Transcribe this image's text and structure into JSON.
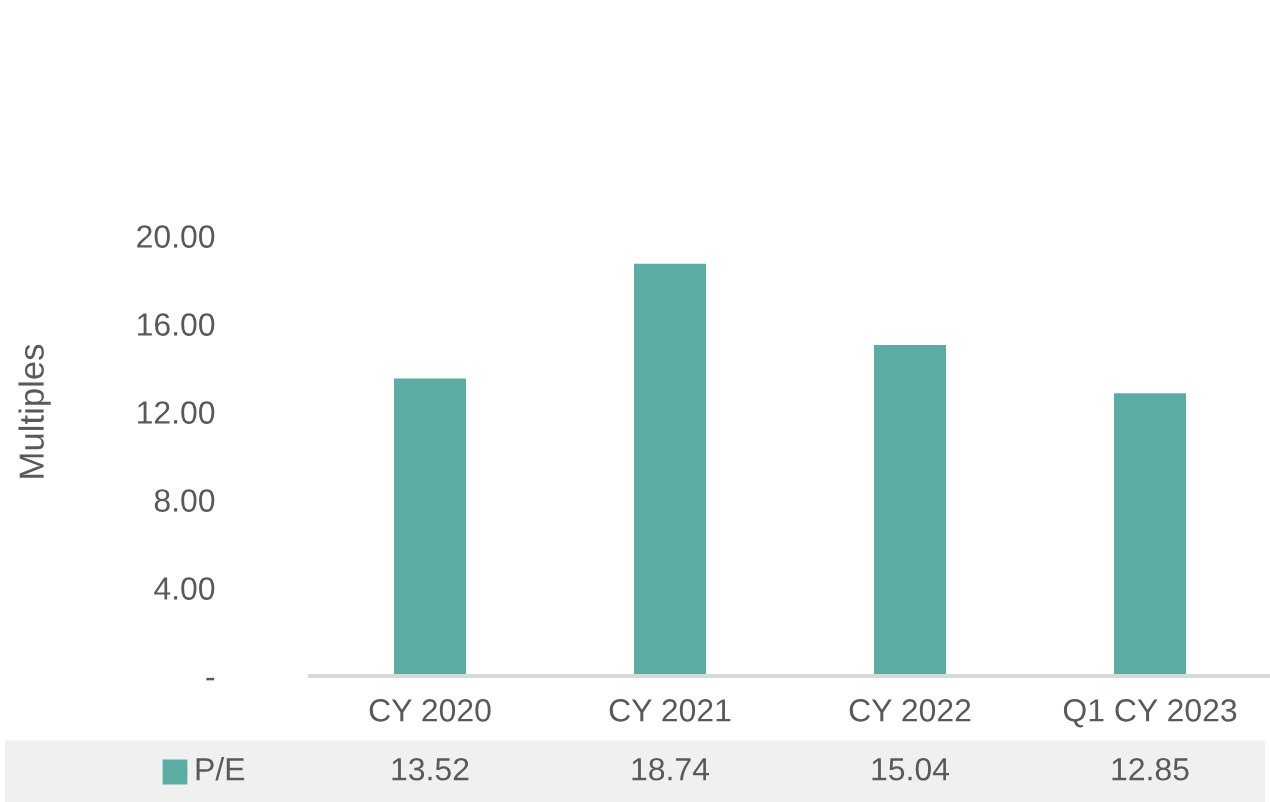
{
  "chart_data": {
    "type": "bar",
    "ylabel": "Multiples",
    "categories": [
      "CY 2020",
      "CY 2021",
      "CY 2022",
      "Q1 CY 2023"
    ],
    "series": [
      {
        "name": "P/E",
        "color": "#5bada3",
        "values": [
          13.52,
          18.74,
          15.04,
          12.85
        ]
      }
    ],
    "ylim": [
      0,
      20
    ],
    "yticks": [
      {
        "value": 0,
        "label": "-"
      },
      {
        "value": 4,
        "label": "4.00"
      },
      {
        "value": 8,
        "label": "8.00"
      },
      {
        "value": 12,
        "label": "12.00"
      },
      {
        "value": 16,
        "label": "16.00"
      },
      {
        "value": 20,
        "label": "20.00"
      }
    ],
    "grid": false,
    "data_labels": true
  }
}
